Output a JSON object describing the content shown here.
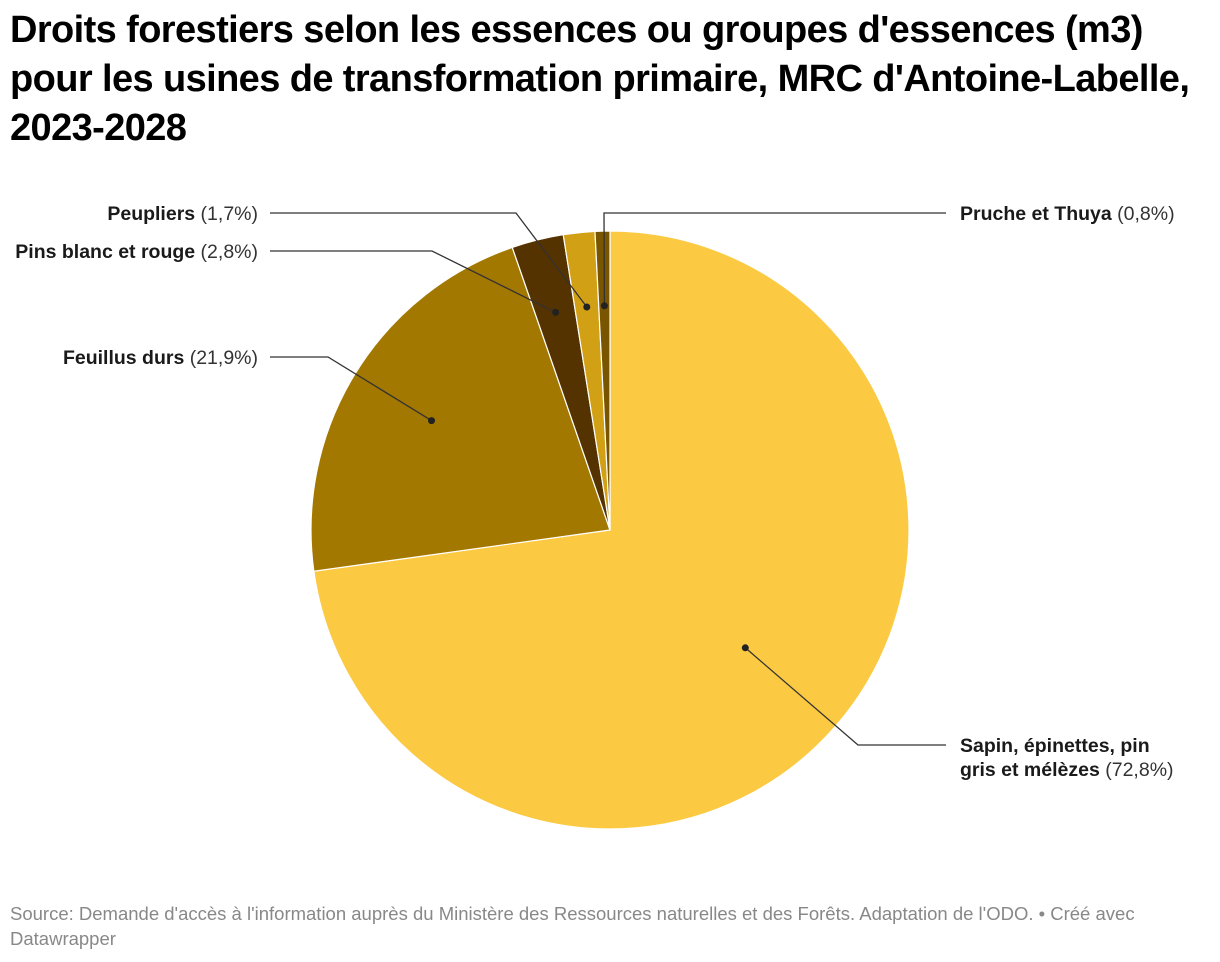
{
  "title": "Droits forestiers selon les essences ou groupes d'essences (m3) pour les usines de transformation primaire, MRC d'Antoine-Labelle, 2023-2028",
  "footer": {
    "source": "Source: Demande d'accès à l'information auprès du Ministère des Ressources naturelles et des Forêts. Adaptation de l'ODO.",
    "credit": "Créé avec Datawrapper",
    "separator": "•"
  },
  "chart_data": {
    "type": "pie",
    "title": "Droits forestiers selon les essences ou groupes d'essences (m3) pour les usines de transformation primaire, MRC d'Antoine-Labelle, 2023-2028",
    "unit": "%",
    "slices": [
      {
        "name": "Sapin, épinettes, pin gris et mélèzes",
        "label_lines": [
          "Sapin, épinettes, pin",
          "gris et mélèzes"
        ],
        "value": 72.8,
        "pct_label": "(72,8%)",
        "color": "#fbc942"
      },
      {
        "name": "Feuillus durs",
        "label_lines": [
          "Feuillus durs"
        ],
        "value": 21.9,
        "pct_label": "(21,9%)",
        "color": "#a37800"
      },
      {
        "name": "Pins blanc et rouge",
        "label_lines": [
          "Pins blanc et rouge"
        ],
        "value": 2.8,
        "pct_label": "(2,8%)",
        "color": "#553300"
      },
      {
        "name": "Peupliers",
        "label_lines": [
          "Peupliers"
        ],
        "value": 1.7,
        "pct_label": "(1,7%)",
        "color": "#d2a015"
      },
      {
        "name": "Pruche et Thuya",
        "label_lines": [
          "Pruche et Thuya"
        ],
        "value": 0.8,
        "pct_label": "(0,8%)",
        "color": "#7a5500"
      }
    ]
  }
}
